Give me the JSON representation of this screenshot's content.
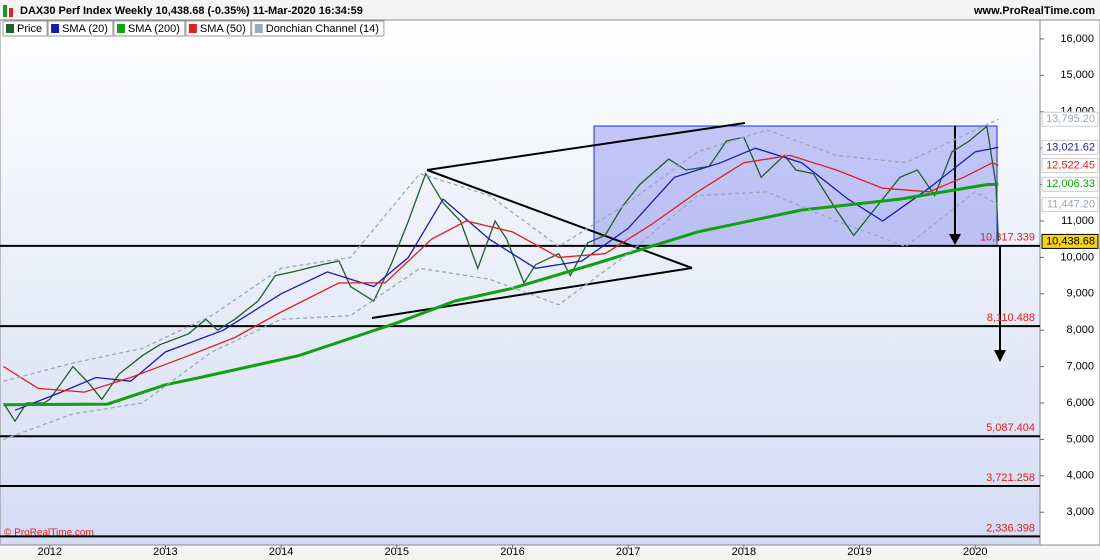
{
  "chart_data": {
    "type": "line",
    "title": "DAX30 Perf Index Weekly 10,438.68 (-0.35%) 11-Mar-2020 16:34:59",
    "source": "www.ProRealTime.com",
    "watermark": "© ProRealTime.com",
    "xlim": [
      2011.57,
      2020.56
    ],
    "xticks": [
      2012,
      2013,
      2014,
      2015,
      2016,
      2017,
      2018,
      2019,
      2020
    ],
    "ylim": [
      2100,
      16520
    ],
    "yticks": [
      {
        "value": 3000,
        "label": "3,000"
      },
      {
        "value": 4000,
        "label": "4,000"
      },
      {
        "value": 5000,
        "label": "5,000"
      },
      {
        "value": 6000,
        "label": "6,000"
      },
      {
        "value": 7000,
        "label": "7,000"
      },
      {
        "value": 8000,
        "label": "8,000"
      },
      {
        "value": 9000,
        "label": "9,000"
      },
      {
        "value": 10000,
        "label": "10,000"
      },
      {
        "value": 11000,
        "label": "11,000"
      },
      {
        "value": 12000,
        "label": "12,000"
      },
      {
        "value": 13000,
        "label": "13,000"
      },
      {
        "value": 14000,
        "label": "14,000"
      },
      {
        "value": 15000,
        "label": "15,000"
      },
      {
        "value": 16000,
        "label": "16,000"
      }
    ],
    "series": [
      {
        "name": "Price",
        "color": "#1f5f2a",
        "x": [
          2011.6,
          2011.7,
          2011.8,
          2011.95,
          2012.0,
          2012.2,
          2012.35,
          2012.45,
          2012.6,
          2012.8,
          2012.95,
          2013.2,
          2013.35,
          2013.45,
          2013.6,
          2013.8,
          2013.95,
          2014.1,
          2014.35,
          2014.5,
          2014.6,
          2014.8,
          2014.95,
          2015.1,
          2015.25,
          2015.4,
          2015.55,
          2015.7,
          2015.85,
          2015.95,
          2016.1,
          2016.2,
          2016.4,
          2016.5,
          2016.65,
          2016.8,
          2016.95,
          2017.1,
          2017.35,
          2017.5,
          2017.7,
          2017.85,
          2018.0,
          2018.15,
          2018.35,
          2018.45,
          2018.6,
          2018.8,
          2018.95,
          2019.15,
          2019.35,
          2019.5,
          2019.65,
          2019.8,
          2019.95,
          2020.1,
          2020.18,
          2020.2
        ],
        "values": [
          6000,
          5500,
          6000,
          6000,
          6100,
          7000,
          6500,
          6100,
          6800,
          7300,
          7600,
          7900,
          8300,
          8000,
          8300,
          8800,
          9500,
          9600,
          9800,
          9900,
          9200,
          8800,
          9800,
          11000,
          12300,
          11500,
          11000,
          9700,
          11000,
          10500,
          9300,
          9800,
          10100,
          9500,
          10400,
          10600,
          11400,
          12000,
          12700,
          12400,
          12500,
          13200,
          13300,
          12200,
          12800,
          12400,
          12300,
          11300,
          10600,
          11400,
          12200,
          12400,
          11700,
          12900,
          13200,
          13600,
          12000,
          10439
        ]
      },
      {
        "name": "SMA (20)",
        "color": "#1a1ab0",
        "x": [
          2011.7,
          2012.1,
          2012.4,
          2012.7,
          2013.0,
          2013.5,
          2014.0,
          2014.4,
          2014.8,
          2015.1,
          2015.4,
          2015.8,
          2016.2,
          2016.6,
          2017.0,
          2017.4,
          2017.8,
          2018.1,
          2018.5,
          2018.9,
          2019.2,
          2019.6,
          2020.0,
          2020.2
        ],
        "values": [
          5800,
          6300,
          6700,
          6600,
          7400,
          8000,
          9000,
          9600,
          9200,
          10000,
          11600,
          10500,
          9700,
          9900,
          10800,
          12200,
          12600,
          13000,
          12600,
          11600,
          11000,
          11900,
          12900,
          13022
        ]
      },
      {
        "name": "SMA (200)",
        "color": "#10a010",
        "x": [
          2011.6,
          2012.5,
          2013.0,
          2013.3,
          2014.15,
          2015.0,
          2015.5,
          2016.0,
          2016.75,
          2017.6,
          2018.5,
          2019.35,
          2020.1,
          2020.2
        ],
        "values": [
          5950,
          5970,
          6500,
          6700,
          7300,
          8200,
          8800,
          9150,
          9860,
          10700,
          11300,
          11600,
          12000,
          12006
        ]
      },
      {
        "name": "SMA (50)",
        "color": "#e02020",
        "x": [
          2011.6,
          2011.9,
          2012.3,
          2012.7,
          2013.2,
          2013.6,
          2014.0,
          2014.5,
          2014.9,
          2015.3,
          2015.6,
          2016.0,
          2016.4,
          2016.8,
          2017.2,
          2017.6,
          2018.0,
          2018.4,
          2018.8,
          2019.2,
          2019.6,
          2019.9,
          2020.15,
          2020.2
        ],
        "values": [
          7000,
          6400,
          6300,
          6700,
          7300,
          7800,
          8500,
          9300,
          9300,
          10500,
          11000,
          10700,
          10000,
          10100,
          10900,
          11800,
          12600,
          12800,
          12400,
          11900,
          11800,
          12200,
          12600,
          12522
        ]
      },
      {
        "name": "Donchian Channel (14)",
        "color": "#9aa8b8",
        "x": [
          2011.6,
          2012.2,
          2012.8,
          2013.4,
          2014.0,
          2014.6,
          2015.2,
          2015.8,
          2016.4,
          2017.0,
          2017.6,
          2018.2,
          2018.8,
          2019.4,
          2020.0,
          2020.2
        ],
        "values": [
          6600,
          7100,
          7500,
          8400,
          9700,
          10000,
          12300,
          11700,
          10300,
          11500,
          12900,
          13500,
          12800,
          12600,
          13500,
          13795.2
        ],
        "low_values": [
          5000,
          5700,
          6000,
          7400,
          8300,
          8400,
          9700,
          9400,
          8700,
          10100,
          11700,
          11800,
          11000,
          10300,
          11800,
          11447.2
        ]
      }
    ],
    "price_tags": [
      {
        "value": 13795.2,
        "label": "13,795.20",
        "color": "#9aa8b8"
      },
      {
        "value": 13021.62,
        "label": "13,021.62",
        "color": "#1a1ab0"
      },
      {
        "value": 12522.45,
        "label": "12,522.45",
        "color": "#e02020"
      },
      {
        "value": 12006.33,
        "label": "12,006.33",
        "color": "#10a010"
      },
      {
        "value": 11447.2,
        "label": "11,447.20",
        "color": "#9aa8b8"
      },
      {
        "value": 10438.68,
        "label": "10,438.68",
        "color": "#000000",
        "background": "#f5d21c"
      }
    ],
    "levels": [
      {
        "value": 10317.339,
        "label": "10,317.339"
      },
      {
        "value": 8110.488,
        "label": "8,110.488"
      },
      {
        "value": 5087.404,
        "label": "5,087.404"
      },
      {
        "value": 3721.258,
        "label": "3,721.258"
      },
      {
        "value": 2336.398,
        "label": "2,336.398"
      }
    ]
  }
}
